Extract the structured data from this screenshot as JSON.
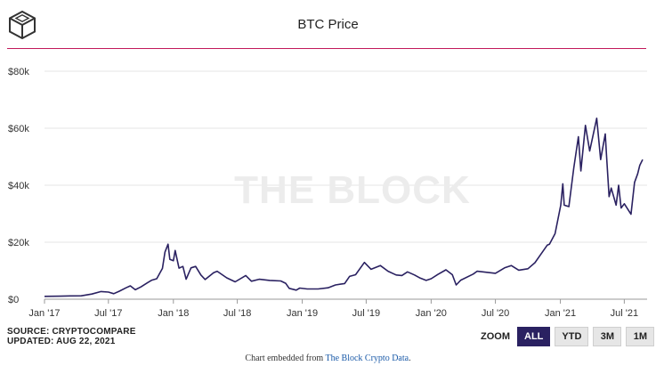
{
  "header": {
    "title": "BTC Price",
    "logo_icon": "cube-icon"
  },
  "colors": {
    "accent_line": "#c2185b",
    "series": "#2a2161",
    "gridline": "#e6e6e6",
    "watermark": "#ececec"
  },
  "watermark": "THE BLOCK",
  "source": {
    "line1": "SOURCE: CRYPTOCOMPARE",
    "line2": "UPDATED: AUG 22, 2021"
  },
  "zoom": {
    "label": "ZOOM",
    "buttons": [
      {
        "label": "ALL",
        "active": true
      },
      {
        "label": "YTD",
        "active": false
      },
      {
        "label": "3M",
        "active": false
      },
      {
        "label": "1M",
        "active": false
      }
    ]
  },
  "footer": {
    "prefix": "Chart embedded from ",
    "link": "The Block Crypto Data",
    "suffix": "."
  },
  "chart_data": {
    "type": "line",
    "title": "BTC Price",
    "xlabel": "",
    "ylabel": "",
    "y_ticks": [
      "$0",
      "$20k",
      "$40k",
      "$60k",
      "$80k"
    ],
    "y_tick_values": [
      0,
      20000,
      40000,
      60000,
      80000
    ],
    "ylim": [
      0,
      80000
    ],
    "x_ticks": [
      "Jan '17",
      "Jul '17",
      "Jan '18",
      "Jul '18",
      "Jan '19",
      "Jul '19",
      "Jan '20",
      "Jul '20",
      "Jan '21",
      "Jul '21"
    ],
    "x_tick_dates": [
      "2017-01-01",
      "2017-07-01",
      "2018-01-01",
      "2018-07-01",
      "2019-01-01",
      "2019-07-01",
      "2020-01-01",
      "2020-07-01",
      "2021-01-01",
      "2021-07-01"
    ],
    "xlim": [
      "2017-01-01",
      "2021-08-22"
    ],
    "grid": true,
    "legend": "none",
    "series": [
      {
        "values": [
          [
            "2017-01-01",
            1000
          ],
          [
            "2017-02-15",
            1050
          ],
          [
            "2017-03-15",
            1150
          ],
          [
            "2017-04-15",
            1200
          ],
          [
            "2017-05-15",
            1800
          ],
          [
            "2017-06-10",
            2700
          ],
          [
            "2017-07-01",
            2500
          ],
          [
            "2017-07-16",
            1950
          ],
          [
            "2017-08-01",
            2800
          ],
          [
            "2017-08-20",
            4000
          ],
          [
            "2017-09-01",
            4700
          ],
          [
            "2017-09-15",
            3300
          ],
          [
            "2017-10-01",
            4300
          ],
          [
            "2017-10-20",
            5800
          ],
          [
            "2017-11-01",
            6700
          ],
          [
            "2017-11-15",
            7200
          ],
          [
            "2017-12-01",
            10800
          ],
          [
            "2017-12-08",
            16500
          ],
          [
            "2017-12-17",
            19300
          ],
          [
            "2017-12-22",
            14000
          ],
          [
            "2018-01-01",
            13500
          ],
          [
            "2018-01-06",
            17100
          ],
          [
            "2018-01-17",
            10900
          ],
          [
            "2018-01-28",
            11500
          ],
          [
            "2018-02-06",
            7000
          ],
          [
            "2018-02-20",
            11000
          ],
          [
            "2018-03-05",
            11500
          ],
          [
            "2018-03-20",
            8500
          ],
          [
            "2018-04-01",
            6900
          ],
          [
            "2018-04-25",
            9300
          ],
          [
            "2018-05-05",
            9800
          ],
          [
            "2018-06-01",
            7500
          ],
          [
            "2018-06-25",
            6100
          ],
          [
            "2018-07-25",
            8300
          ],
          [
            "2018-08-10",
            6300
          ],
          [
            "2018-09-01",
            7000
          ],
          [
            "2018-10-01",
            6600
          ],
          [
            "2018-11-01",
            6400
          ],
          [
            "2018-11-15",
            5600
          ],
          [
            "2018-11-25",
            3800
          ],
          [
            "2018-12-15",
            3200
          ],
          [
            "2018-12-25",
            3900
          ],
          [
            "2019-01-15",
            3600
          ],
          [
            "2019-02-15",
            3600
          ],
          [
            "2019-03-15",
            4000
          ],
          [
            "2019-04-05",
            5000
          ],
          [
            "2019-05-01",
            5500
          ],
          [
            "2019-05-15",
            8000
          ],
          [
            "2019-06-01",
            8600
          ],
          [
            "2019-06-26",
            12900
          ],
          [
            "2019-07-15",
            10500
          ],
          [
            "2019-08-10",
            11800
          ],
          [
            "2019-09-01",
            9800
          ],
          [
            "2019-09-24",
            8500
          ],
          [
            "2019-10-10",
            8300
          ],
          [
            "2019-10-26",
            9600
          ],
          [
            "2019-11-15",
            8500
          ],
          [
            "2019-12-01",
            7400
          ],
          [
            "2019-12-18",
            6600
          ],
          [
            "2020-01-01",
            7200
          ],
          [
            "2020-01-20",
            8700
          ],
          [
            "2020-02-12",
            10300
          ],
          [
            "2020-03-01",
            8600
          ],
          [
            "2020-03-12",
            5000
          ],
          [
            "2020-03-25",
            6700
          ],
          [
            "2020-04-29",
            8800
          ],
          [
            "2020-05-10",
            9800
          ],
          [
            "2020-06-01",
            9500
          ],
          [
            "2020-07-01",
            9100
          ],
          [
            "2020-07-27",
            11000
          ],
          [
            "2020-08-15",
            11800
          ],
          [
            "2020-09-05",
            10200
          ],
          [
            "2020-10-01",
            10700
          ],
          [
            "2020-10-21",
            12800
          ],
          [
            "2020-11-05",
            15500
          ],
          [
            "2020-11-25",
            19000
          ],
          [
            "2020-12-01",
            19300
          ],
          [
            "2020-12-17",
            23000
          ],
          [
            "2021-01-02",
            33000
          ],
          [
            "2021-01-08",
            40500
          ],
          [
            "2021-01-12",
            33000
          ],
          [
            "2021-01-25",
            32500
          ],
          [
            "2021-02-08",
            46000
          ],
          [
            "2021-02-21",
            57000
          ],
          [
            "2021-02-28",
            45000
          ],
          [
            "2021-03-13",
            61000
          ],
          [
            "2021-03-25",
            52000
          ],
          [
            "2021-04-14",
            63500
          ],
          [
            "2021-04-25",
            49000
          ],
          [
            "2021-05-08",
            58000
          ],
          [
            "2021-05-12",
            50000
          ],
          [
            "2021-05-19",
            36000
          ],
          [
            "2021-05-25",
            39000
          ],
          [
            "2021-06-08",
            33000
          ],
          [
            "2021-06-15",
            40000
          ],
          [
            "2021-06-22",
            32000
          ],
          [
            "2021-07-01",
            33500
          ],
          [
            "2021-07-20",
            29800
          ],
          [
            "2021-07-30",
            41000
          ],
          [
            "2021-08-08",
            44000
          ],
          [
            "2021-08-14",
            47000
          ],
          [
            "2021-08-22",
            49000
          ]
        ]
      }
    ]
  }
}
